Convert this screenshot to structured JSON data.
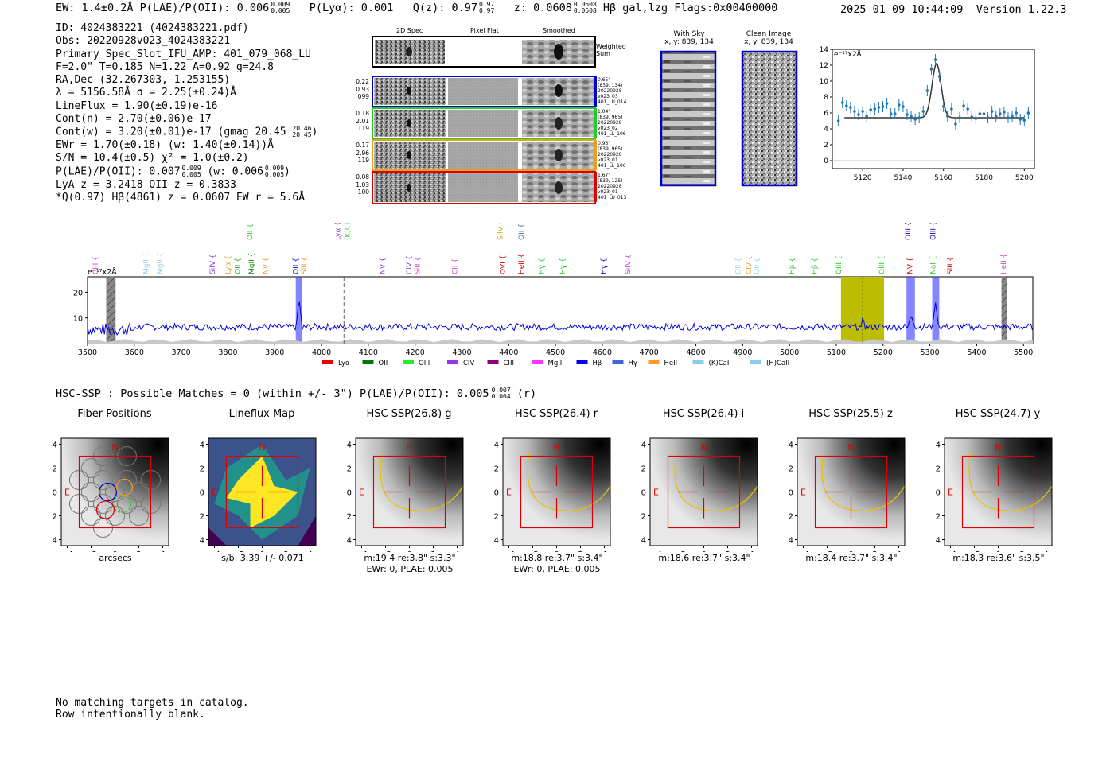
{
  "header": {
    "left": "EW: 1.4±0.2Å  P(LAE)/P(OII): 0.006",
    "left_sup": "0.009",
    "left_sub": "0.005",
    "plya": "P(Lyα): 0.001",
    "q": "Q(z): 0.97",
    "q_sup": "0.97",
    "q_sub": "0.97",
    "z": "z: 0.0608",
    "z_sup": "0.0608",
    "z_sub": "0.0608",
    "tail": "Hβ  gal,lzg  Flags:0x00400000",
    "datetime": "2025-01-09 10:44:09",
    "version": "Version 1.22.3"
  },
  "info": {
    "l1": "ID: 4024383221 (4024383221.pdf)",
    "l2": "Obs: 20220928v023_4024383221",
    "l3": "Primary Spec_Slot_IFU_AMP: 401_079_068_LU",
    "l4": "F=2.0\"  T=0.185  N=1.22  A=0.92  g=24.8",
    "l5": "RA,Dec (32.267303,-1.253155)",
    "l6": "λ = 5156.58Å  σ = 2.25(±0.24)Å",
    "l7": "LineFlux = 1.90(±0.19)e-16",
    "l8": "Cont(n) = 2.70(±0.06)e-17",
    "l9": "Cont(w) = 3.20(±0.01)e-17 (gmag 20.45",
    "l9_sup": "20.46",
    "l9_sub": "20.45",
    "l9_end": ")",
    "l10": "EWr = 1.70(±0.18) (w: 1.40(±0.14))Å",
    "l11": "S/N = 10.4(±0.5)  χ² = 1.0(±0.2)",
    "l12": "P(LAE)/P(OII): 0.007",
    "l12_sup": "0.009",
    "l12_sub": "0.005",
    "l12_mid": "(w: 0.006",
    "l12_sup2": "0.009",
    "l12_sub2": "0.005",
    "l12_end": ")",
    "l13": "LyA z = 3.2418  OII z = 0.3833",
    "l14": "*Q(0.97) Hβ(4861) z = 0.0607  EW r = 5.6Å"
  },
  "stamps": {
    "col_2d": "2D Spec",
    "col_flat": "Pixel Flat",
    "col_smooth": "Smoothed",
    "weighted": "Weighted Sum",
    "rows": [
      {
        "left": [
          "0.22",
          "0.93",
          "099"
        ],
        "right": [
          "0.65\"",
          "(839, 134)",
          "20220928",
          "v023_03",
          "401_LU_014"
        ],
        "color": "#0000cc"
      },
      {
        "left": [
          "0.18",
          "2.01",
          "119"
        ],
        "right": [
          "1.04\"",
          "(839, 965)",
          "20220928",
          "v023_02",
          "401_LL_106"
        ],
        "color": "#22cc22"
      },
      {
        "left": [
          "0.17",
          "2.96",
          "119"
        ],
        "right": [
          "0.93\"",
          "(839, 965)",
          "20220928",
          "v023_01",
          "401_LL_106"
        ],
        "color": "#e8a020"
      },
      {
        "left": [
          "0.08",
          "1.03",
          "100"
        ],
        "right": [
          "1.67\"",
          "(839, 125)",
          "20220928",
          "v023_01",
          "401_LU_013"
        ],
        "color": "#dd0000"
      }
    ],
    "with_sky": "With Sky",
    "with_sky_xy": "x, y: 839, 134",
    "clean": "Clean Image",
    "clean_xy": "x, y: 839, 134"
  },
  "chart_data": [
    {
      "type": "line",
      "title": "Emission line fit",
      "ylabel_unit": "e⁻¹⁷x2Å",
      "xlim": [
        5105,
        5205
      ],
      "ylim": [
        -1,
        14
      ],
      "xticks": [
        5120,
        5140,
        5160,
        5180,
        5200
      ],
      "yticks": [
        0,
        2,
        4,
        6,
        8,
        10,
        12,
        14
      ],
      "points_x": [
        5108,
        5110,
        5112,
        5114,
        5116,
        5118,
        5120,
        5122,
        5124,
        5126,
        5128,
        5130,
        5132,
        5134,
        5136,
        5138,
        5140,
        5142,
        5144,
        5146,
        5148,
        5150,
        5152,
        5154,
        5156,
        5158,
        5160,
        5162,
        5164,
        5166,
        5168,
        5170,
        5172,
        5174,
        5176,
        5178,
        5180,
        5182,
        5184,
        5186,
        5188,
        5190,
        5192,
        5194,
        5196,
        5198,
        5200,
        5202
      ],
      "points_y": [
        5.0,
        7.3,
        6.9,
        6.7,
        6.2,
        5.8,
        6.2,
        5.6,
        6.4,
        6.5,
        6.7,
        6.8,
        7.2,
        5.9,
        5.9,
        7.0,
        6.8,
        5.8,
        5.6,
        5.2,
        5.4,
        6.2,
        8.8,
        11.5,
        12.7,
        10.6,
        6.8,
        5.6,
        6.5,
        4.6,
        5.4,
        6.9,
        6.5,
        5.5,
        5.3,
        5.9,
        5.9,
        5.4,
        6.2,
        5.6,
        5.9,
        6.1,
        5.4,
        5.6,
        6.0,
        5.2,
        5.1,
        6.0
      ],
      "fit_continuum": 5.4,
      "fit_peak": 12.2,
      "fit_center": 5156.58,
      "fit_sigma": 2.25
    },
    {
      "type": "line",
      "title": "Full spectrum",
      "ylabel_unit": "e⁻¹⁷x2Å",
      "xlim": [
        3500,
        5520
      ],
      "ylim": [
        0,
        26
      ],
      "xticks": [
        3500,
        3600,
        3700,
        3800,
        3900,
        4000,
        4100,
        4200,
        4300,
        4400,
        4500,
        4600,
        4700,
        4800,
        4900,
        5000,
        5100,
        5200,
        5300,
        5400,
        5500
      ],
      "yticks": [
        10,
        20
      ],
      "highlight_range": [
        5110,
        5202
      ],
      "fit_wavelength": 5156.58,
      "dashed_line": 4048,
      "line_markers": [
        {
          "label": "CIII",
          "x": 3522,
          "color": "#cc44cc",
          "row": "low"
        },
        {
          "label": "MgII",
          "x": 3630,
          "color": "#99ccee",
          "row": "low"
        },
        {
          "label": "MgII",
          "x": 3660,
          "color": "#99ccee",
          "row": "low"
        },
        {
          "label": "SiIV",
          "x": 3772,
          "color": "#8844cc",
          "row": "low"
        },
        {
          "label": "Lyα",
          "x": 3805,
          "color": "#e8a020",
          "row": "low"
        },
        {
          "label": "OII",
          "x": 3826,
          "color": "#22aa22",
          "row": "low"
        },
        {
          "label": "MgII",
          "x": 3855,
          "color": "#118811",
          "row": "low"
        },
        {
          "label": "OII",
          "x": 3852,
          "color": "#22cc22",
          "row": "high"
        },
        {
          "label": "NV",
          "x": 3885,
          "color": "#e8a020",
          "row": "low"
        },
        {
          "label": "OII",
          "x": 3950,
          "color": "#0000cc",
          "row": "low"
        },
        {
          "label": "SiII",
          "x": 3968,
          "color": "#e8a020",
          "row": "low"
        },
        {
          "label": "Lyα",
          "x": 4040,
          "color": "#8844cc",
          "row": "high"
        },
        {
          "label": "(K)CaII",
          "x": 4060,
          "color": "#22cc22",
          "row": "high"
        },
        {
          "label": "NV",
          "x": 4135,
          "color": "#8844cc",
          "row": "low"
        },
        {
          "label": "CIV",
          "x": 4192,
          "color": "#8844cc",
          "row": "low"
        },
        {
          "label": "SiII",
          "x": 4210,
          "color": "#cc44cc",
          "row": "low"
        },
        {
          "label": "CII",
          "x": 4290,
          "color": "#cc44cc",
          "row": "low"
        },
        {
          "label": "OVI",
          "x": 4392,
          "color": "#dd0000",
          "row": "low"
        },
        {
          "label": "SiIV",
          "x": 4387,
          "color": "#e8a020",
          "row": "high"
        },
        {
          "label": "HeII",
          "x": 4432,
          "color": "#dd0000",
          "row": "low"
        },
        {
          "label": "OII",
          "x": 4432,
          "color": "#4466cc",
          "row": "high"
        },
        {
          "label": "Hγ",
          "x": 4475,
          "color": "#22cc22",
          "row": "low"
        },
        {
          "label": "Hγ",
          "x": 4520,
          "color": "#22cc22",
          "row": "low"
        },
        {
          "label": "Hγ",
          "x": 4608,
          "color": "#0000cc",
          "row": "low"
        },
        {
          "label": "SiIV",
          "x": 4660,
          "color": "#cc44cc",
          "row": "low"
        },
        {
          "label": "OII",
          "x": 4895,
          "color": "#99ccee",
          "row": "low"
        },
        {
          "label": "CIV",
          "x": 4918,
          "color": "#e8a020",
          "row": "low"
        },
        {
          "label": "OII",
          "x": 4935,
          "color": "#99ccee",
          "row": "low"
        },
        {
          "label": "Hβ",
          "x": 5010,
          "color": "#22cc22",
          "row": "low"
        },
        {
          "label": "Hβ",
          "x": 5058,
          "color": "#22cc22",
          "row": "low"
        },
        {
          "label": "OIII",
          "x": 5110,
          "color": "#22cc22",
          "row": "low"
        },
        {
          "label": "OIII",
          "x": 5202,
          "color": "#22cc22",
          "row": "low"
        },
        {
          "label": "OIII",
          "x": 5258,
          "color": "#0000cc",
          "row": "high"
        },
        {
          "label": "NV",
          "x": 5262,
          "color": "#dd0000",
          "row": "low"
        },
        {
          "label": "OIII",
          "x": 5312,
          "color": "#0000cc",
          "row": "high"
        },
        {
          "label": "NaI",
          "x": 5312,
          "color": "#22cc22",
          "row": "low"
        },
        {
          "label": "SiII",
          "x": 5348,
          "color": "#dd0000",
          "row": "low"
        },
        {
          "label": "HeII",
          "x": 5462,
          "color": "#cc44cc",
          "row": "low"
        }
      ],
      "shaded_bands": [
        {
          "x0": 3540,
          "x1": 3560,
          "color": "#888888",
          "hatched": true
        },
        {
          "x0": 3945,
          "x1": 3958,
          "color": "#3333ff",
          "hatched": false
        },
        {
          "x0": 5250,
          "x1": 5268,
          "color": "#3333ff",
          "hatched": false
        },
        {
          "x0": 5305,
          "x1": 5320,
          "color": "#3333ff",
          "hatched": false
        },
        {
          "x0": 5453,
          "x1": 5465,
          "color": "#888888",
          "hatched": true
        }
      ],
      "legend": [
        {
          "label": "Lyα",
          "color": "#ee0000"
        },
        {
          "label": "OII",
          "color": "#007700"
        },
        {
          "label": "OIII",
          "color": "#22ee22"
        },
        {
          "label": "CIV",
          "color": "#9933ee"
        },
        {
          "label": "CIII",
          "color": "#880088"
        },
        {
          "label": "MgII",
          "color": "#ff33ff"
        },
        {
          "label": "Hβ",
          "color": "#0000ee"
        },
        {
          "label": "Hγ",
          "color": "#4466dd"
        },
        {
          "label": "HeII",
          "color": "#ff9922"
        },
        {
          "label": "(K)CaII",
          "color": "#88ccee"
        },
        {
          "label": "(H)CaII",
          "color": "#88ccee"
        }
      ]
    }
  ],
  "hsc": {
    "summary": "HSC-SSP : Possible Matches = 0 (within +/- 3\")  P(LAE)/P(OII): 0.005",
    "summary_sup": "0.007",
    "summary_sub": "0.004",
    "summary_end": "(r)",
    "panels": [
      {
        "title": "Fiber Positions",
        "xlabel": "arcsecs",
        "line2": ""
      },
      {
        "title": "Lineflux Map",
        "xlabel": "s/b: 3.39 +/- 0.071",
        "line2": ""
      },
      {
        "title": "HSC SSP(26.8) g",
        "xlabel": "m:19.4  re:3.8\"  s:3.3\"",
        "line2": "EWr: 0, PLAE: 0.005"
      },
      {
        "title": "HSC SSP(26.4) r",
        "xlabel": "m:18.8  re:3.7\"  s:3.4\"",
        "line2": "EWr: 0, PLAE: 0.005"
      },
      {
        "title": "HSC SSP(26.4) i",
        "xlabel": "m:18.6  re:3.7\"  s:3.4\"",
        "line2": ""
      },
      {
        "title": "HSC SSP(25.5) z",
        "xlabel": "m:18.4  re:3.7\"  s:3.4\"",
        "line2": ""
      },
      {
        "title": "HSC SSP(24.7) y",
        "xlabel": "m:18.3  re:3.6\"  s:3.5\"",
        "line2": ""
      }
    ],
    "ticks": [
      "−4",
      "−2",
      "0",
      "2",
      "4"
    ],
    "yticks": [
      "4",
      "2",
      "0",
      "−2",
      "−4"
    ],
    "n": "N",
    "e": "E"
  },
  "footer": {
    "l1": "No matching targets in catalog.",
    "l2": "Row intentionally blank."
  }
}
